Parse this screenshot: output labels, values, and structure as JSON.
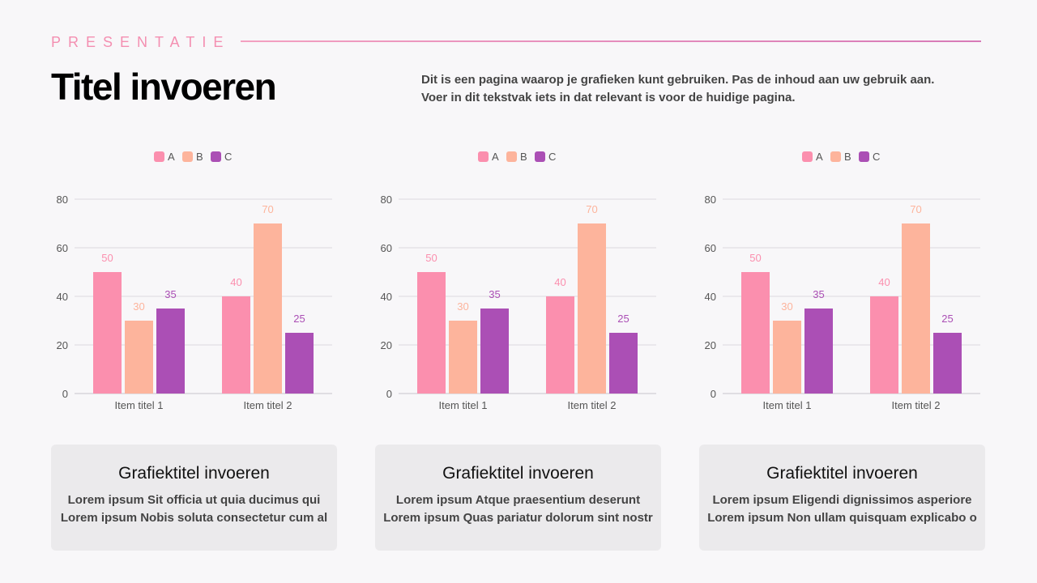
{
  "header": {
    "kicker": "PRESENTATIE",
    "title": "Titel invoeren",
    "description_lines": [
      "Dit is een pagina waarop je grafieken kunt gebruiken. Pas de inhoud aan uw gebruik aan.",
      "Voer in dit tekstvak iets in dat relevant is voor de huidige pagina."
    ]
  },
  "colors": {
    "A": "#fb8fae",
    "B": "#fdb49c",
    "C": "#ab4fb5",
    "accent": "#f48fb1"
  },
  "chart_data": [
    {
      "type": "bar",
      "categories": [
        "Item titel 1",
        "Item titel 2"
      ],
      "series": [
        {
          "name": "A",
          "values": [
            50,
            40
          ]
        },
        {
          "name": "B",
          "values": [
            30,
            70
          ]
        },
        {
          "name": "C",
          "values": [
            35,
            25
          ]
        }
      ],
      "ylim": [
        0,
        80
      ],
      "yticks": [
        0,
        20,
        40,
        60,
        80
      ],
      "grid": true,
      "legend": "top"
    },
    {
      "type": "bar",
      "categories": [
        "Item titel 1",
        "Item titel 2"
      ],
      "series": [
        {
          "name": "A",
          "values": [
            50,
            40
          ]
        },
        {
          "name": "B",
          "values": [
            30,
            70
          ]
        },
        {
          "name": "C",
          "values": [
            35,
            25
          ]
        }
      ],
      "ylim": [
        0,
        80
      ],
      "yticks": [
        0,
        20,
        40,
        60,
        80
      ],
      "grid": true,
      "legend": "top"
    },
    {
      "type": "bar",
      "categories": [
        "Item titel 1",
        "Item titel 2"
      ],
      "series": [
        {
          "name": "A",
          "values": [
            50,
            40
          ]
        },
        {
          "name": "B",
          "values": [
            30,
            70
          ]
        },
        {
          "name": "C",
          "values": [
            35,
            25
          ]
        }
      ],
      "ylim": [
        0,
        80
      ],
      "yticks": [
        0,
        20,
        40,
        60,
        80
      ],
      "grid": true,
      "legend": "top"
    }
  ],
  "cards": [
    {
      "title": "Grafiektitel invoeren",
      "lines": [
        "Lorem ipsum Sit officia ut quia ducimus qui",
        "Lorem ipsum Nobis soluta consectetur cum al"
      ]
    },
    {
      "title": "Grafiektitel invoeren",
      "lines": [
        "Lorem ipsum Atque praesentium deserunt",
        "Lorem ipsum Quas pariatur dolorum sint nostr"
      ]
    },
    {
      "title": "Grafiektitel invoeren",
      "lines": [
        "Lorem ipsum Eligendi dignissimos asperiore",
        "Lorem ipsum Non ullam quisquam explicabo o"
      ]
    }
  ]
}
